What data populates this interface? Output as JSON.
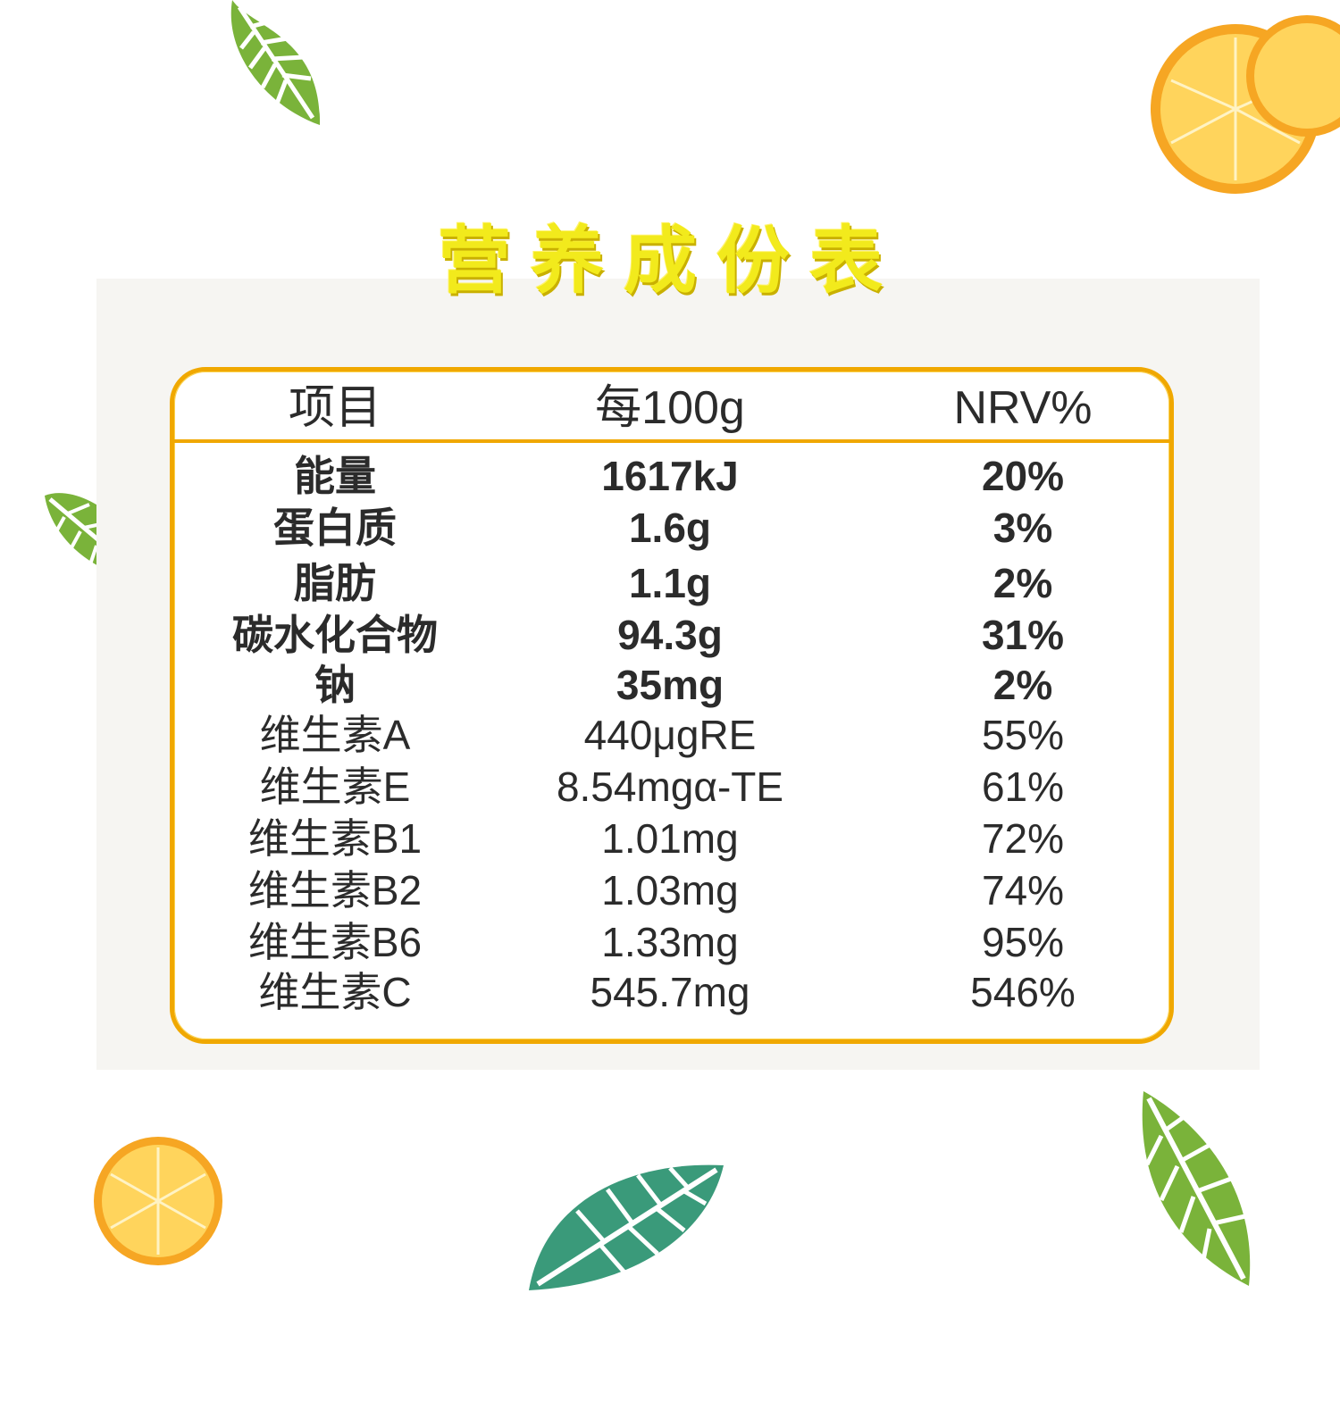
{
  "title": "营养成份表",
  "table": {
    "headers": [
      "项目",
      "每100g",
      "NRV%"
    ],
    "rows": [
      {
        "item": "能量",
        "per100g": "1617kJ",
        "nrv": "20%",
        "bold": true
      },
      {
        "item": "蛋白质",
        "per100g": "1.6g",
        "nrv": "3%",
        "bold": true
      },
      {
        "item": "脂肪",
        "per100g": "1.1g",
        "nrv": "2%",
        "bold": true
      },
      {
        "item": "碳水化合物",
        "per100g": "94.3g",
        "nrv": "31%",
        "bold": true
      },
      {
        "item": "钠",
        "per100g": "35mg",
        "nrv": "2%",
        "bold": true
      },
      {
        "item": "维生素A",
        "per100g": "440μgRE",
        "nrv": "55%",
        "bold": false
      },
      {
        "item": "维生素E",
        "per100g": "8.54mgα-TE",
        "nrv": "61%",
        "bold": false
      },
      {
        "item": "维生素B1",
        "per100g": "1.01mg",
        "nrv": "72%",
        "bold": false
      },
      {
        "item": "维生素B2",
        "per100g": "1.03mg",
        "nrv": "74%",
        "bold": false
      },
      {
        "item": "维生素B6",
        "per100g": "1.33mg",
        "nrv": "95%",
        "bold": false
      },
      {
        "item": "维生素C",
        "per100g": "545.7mg",
        "nrv": "546%",
        "bold": false
      }
    ]
  },
  "decorations": [
    {
      "icon": "leaf-icon",
      "color": "#7ab33a"
    },
    {
      "icon": "orange-slice-icon",
      "color": "#f6a623"
    },
    {
      "icon": "leaf-icon",
      "color": "#7ab33a"
    },
    {
      "icon": "leaf-icon",
      "color": "#3a9a7a"
    },
    {
      "icon": "orange-slice-icon",
      "color": "#f6a623"
    },
    {
      "icon": "leaf-icon",
      "color": "#3a9a7a"
    },
    {
      "icon": "leaf-icon",
      "color": "#7ab33a"
    }
  ],
  "colors": {
    "title": "#f2ea1c",
    "frame": "#f0a800",
    "text": "#2b2b2b"
  }
}
